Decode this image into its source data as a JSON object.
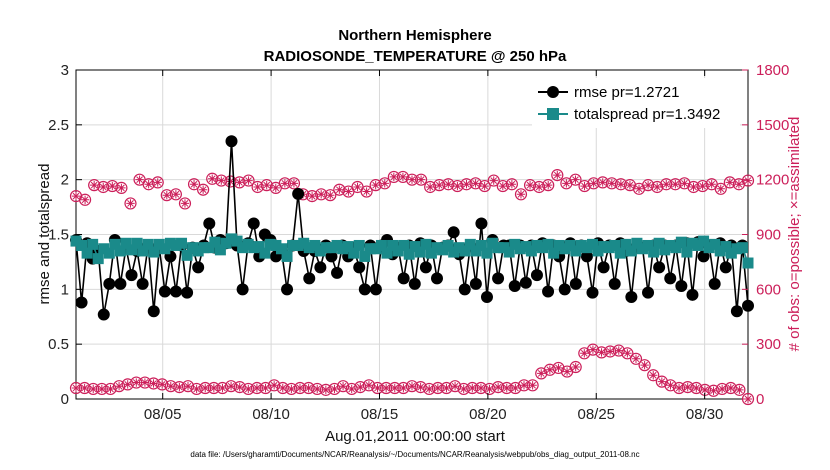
{
  "chart_data": {
    "type": "line",
    "title": "Northern Hemisphere",
    "subtitle": "RADIOSONDE_TEMPERATURE @ 250 hPa",
    "xlabel": "Aug.01,2011 00:00:00 start",
    "ylabel": "rmse and totalspread",
    "ylabel_right": "# of obs: o=possible; ×=assimilated",
    "xlim": [
      1,
      32
    ],
    "ylim": [
      0,
      3
    ],
    "ylim_right": [
      0,
      1800
    ],
    "x_ticks": [
      5,
      10,
      15,
      20,
      25,
      30
    ],
    "x_tick_labels": [
      "08/05",
      "08/10",
      "08/15",
      "08/20",
      "08/25",
      "08/30"
    ],
    "y_ticks": [
      0,
      0.5,
      1,
      1.5,
      2,
      2.5,
      3
    ],
    "y_tick_labels": [
      "0",
      "0.5",
      "1",
      "1.5",
      "2",
      "2.5",
      "3"
    ],
    "y_ticks_right": [
      0,
      300,
      600,
      900,
      1200,
      1500,
      1800
    ],
    "y_tick_labels_right": [
      "0",
      "300",
      "600",
      "900",
      "1200",
      "1500",
      "1800"
    ],
    "grid": true,
    "legend_position": "top-right",
    "colors": {
      "rmse": "#000000",
      "totalspread": "#1a8a8a",
      "obs": "#cc1f5a",
      "grid": "#d9d9d9"
    },
    "series": [
      {
        "name": "rmse",
        "label": "rmse pr=1.2721",
        "values": [
          1.45,
          0.88,
          1.42,
          1.28,
          1.35,
          0.77,
          1.05,
          1.45,
          1.05,
          1.38,
          1.13,
          1.35,
          1.05,
          1.4,
          0.8,
          1.38,
          0.98,
          1.3,
          0.98,
          1.4,
          0.97,
          1.38,
          1.2,
          1.4,
          1.6,
          1.38,
          1.45,
          1.42,
          2.35,
          1.4,
          1.0,
          1.42,
          1.6,
          1.3,
          1.5,
          1.45,
          1.3,
          1.35,
          1.0,
          1.4,
          1.87,
          1.35,
          1.1,
          1.35,
          1.2,
          1.4,
          1.3,
          1.15,
          1.4,
          1.3,
          1.38,
          1.2,
          1.0,
          1.4,
          1.0,
          1.4,
          1.45,
          1.32,
          1.38,
          1.1,
          1.4,
          1.05,
          1.42,
          1.2,
          1.4,
          1.1,
          1.38,
          1.4,
          1.52,
          1.32,
          1.0,
          1.4,
          1.05,
          1.6,
          0.93,
          1.45,
          1.1,
          1.4,
          1.4,
          1.03,
          1.4,
          1.06,
          1.4,
          1.13,
          1.42,
          0.98,
          1.4,
          1.3,
          1.0,
          1.42,
          1.05,
          1.4,
          1.3,
          0.97,
          1.42,
          1.2,
          1.4,
          1.05,
          1.42,
          1.35,
          0.93,
          1.4,
          1.38,
          0.97,
          1.4,
          1.2,
          1.4,
          1.1,
          1.4,
          1.03,
          1.42,
          0.95,
          1.43,
          1.3,
          1.4,
          1.05,
          1.42,
          1.2,
          1.4,
          0.8,
          1.4,
          0.85
        ]
      },
      {
        "name": "totalspread",
        "label": "totalspread pr=1.3492",
        "values": [
          1.44,
          1.4,
          1.33,
          1.41,
          1.28,
          1.37,
          1.33,
          1.41,
          1.35,
          1.42,
          1.36,
          1.42,
          1.35,
          1.41,
          1.34,
          1.41,
          1.37,
          1.42,
          1.4,
          1.42,
          1.31,
          1.38,
          1.35,
          1.38,
          1.38,
          1.43,
          1.36,
          1.42,
          1.46,
          1.44,
          1.38,
          1.41,
          1.38,
          1.39,
          1.33,
          1.41,
          1.4,
          1.37,
          1.3,
          1.4,
          1.4,
          1.42,
          1.38,
          1.4,
          1.35,
          1.38,
          1.38,
          1.4,
          1.37,
          1.39,
          1.33,
          1.4,
          1.3,
          1.37,
          1.37,
          1.4,
          1.33,
          1.4,
          1.35,
          1.4,
          1.32,
          1.39,
          1.34,
          1.41,
          1.33,
          1.38,
          1.36,
          1.4,
          1.34,
          1.38,
          1.35,
          1.41,
          1.35,
          1.4,
          1.33,
          1.42,
          1.38,
          1.38,
          1.34,
          1.41,
          1.37,
          1.39,
          1.35,
          1.4,
          1.38,
          1.41,
          1.33,
          1.4,
          1.37,
          1.4,
          1.35,
          1.4,
          1.38,
          1.41,
          1.35,
          1.39,
          1.38,
          1.4,
          1.33,
          1.41,
          1.35,
          1.42,
          1.37,
          1.4,
          1.34,
          1.42,
          1.36,
          1.4,
          1.38,
          1.43,
          1.34,
          1.42,
          1.4,
          1.44,
          1.38,
          1.41,
          1.35,
          1.39,
          1.33,
          1.37,
          1.38,
          1.24
        ]
      },
      {
        "name": "obs_possible_upper",
        "axis": "right",
        "marker": "circle",
        "values": [
          1110,
          1090,
          1170,
          1160,
          1165,
          1155,
          1070,
          1200,
          1175,
          1185,
          1115,
          1120,
          1070,
          1175,
          1145,
          1205,
          1195,
          1190,
          1185,
          1195,
          1160,
          1170,
          1155,
          1180,
          1180,
          1120,
          1110,
          1120,
          1115,
          1145,
          1135,
          1160,
          1135,
          1170,
          1180,
          1215,
          1215,
          1200,
          1200,
          1160,
          1170,
          1175,
          1165,
          1175,
          1180,
          1165,
          1195,
          1165,
          1175,
          1120,
          1170,
          1160,
          1170,
          1225,
          1180,
          1200,
          1165,
          1180,
          1185,
          1180,
          1175,
          1170,
          1150,
          1170,
          1160,
          1175,
          1175,
          1180,
          1160,
          1165,
          1175,
          1150,
          1185,
          1175,
          1195
        ]
      },
      {
        "name": "obs_possible_lower",
        "axis": "right",
        "marker": "circle",
        "values": [
          60,
          60,
          55,
          55,
          55,
          70,
          80,
          90,
          90,
          85,
          80,
          70,
          65,
          70,
          55,
          60,
          60,
          60,
          70,
          65,
          55,
          60,
          60,
          75,
          60,
          55,
          60,
          60,
          55,
          50,
          55,
          70,
          55,
          65,
          75,
          60,
          60,
          60,
          60,
          70,
          65,
          55,
          60,
          60,
          70,
          55,
          60,
          60,
          55,
          65,
          60,
          60,
          75,
          75,
          140,
          160,
          170,
          150,
          175,
          250,
          270,
          255,
          260,
          265,
          250,
          220,
          185,
          130,
          95,
          75,
          60,
          65,
          60,
          50,
          45,
          55,
          60,
          50,
          0
        ]
      }
    ]
  },
  "footnote": "data file: /Users/gharamti/Documents/NCAR/Reanalysis/~/Documents/NCAR/Reanalysis/webpub/obs_diag_output_2011-08.nc"
}
